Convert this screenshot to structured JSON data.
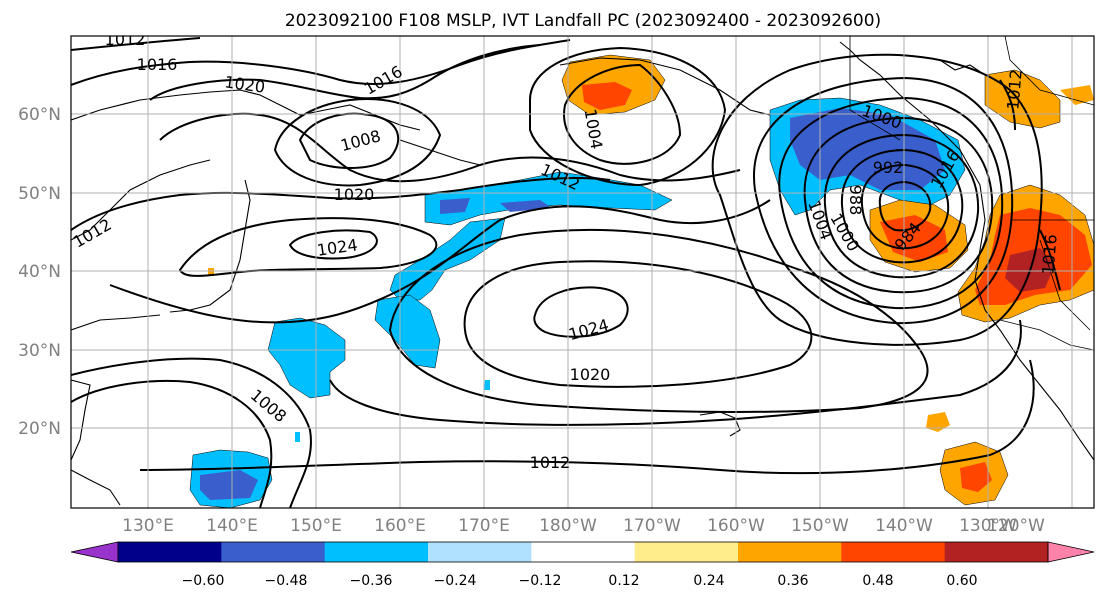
{
  "title": "2023092100 F108 MSLP, IVT Landfall PC (2023092400 - 2023092600)",
  "map": {
    "lat_labels": [
      "60°N",
      "50°N",
      "40°N",
      "30°N",
      "20°N"
    ],
    "lon_labels": [
      "130°E",
      "140°E",
      "150°E",
      "160°E",
      "170°E",
      "180°W",
      "170°W",
      "160°W",
      "150°W",
      "140°W",
      "130°W",
      "120°W"
    ],
    "isobar_labels": [
      "1012",
      "1016",
      "1020",
      "1016",
      "1004",
      "1008",
      "1012",
      "1020",
      "1024",
      "1012",
      "1024",
      "1020",
      "1008",
      "1012",
      "1000",
      "992",
      "988",
      "1004",
      "1000",
      "984",
      "1016",
      "1016",
      "1012"
    ]
  },
  "colorbar": {
    "ticks": [
      "−0.60",
      "−0.48",
      "−0.36",
      "−0.24",
      "−0.12",
      "0.12",
      "0.24",
      "0.36",
      "0.48",
      "0.60"
    ],
    "colors": [
      "#9933cc",
      "#00008b",
      "#3a5fcd",
      "#00bfff",
      "#b0e2ff",
      "#ffffff",
      "#ffec8b",
      "#ffa500",
      "#ff4500",
      "#b22222",
      "#ff82ab"
    ]
  }
}
